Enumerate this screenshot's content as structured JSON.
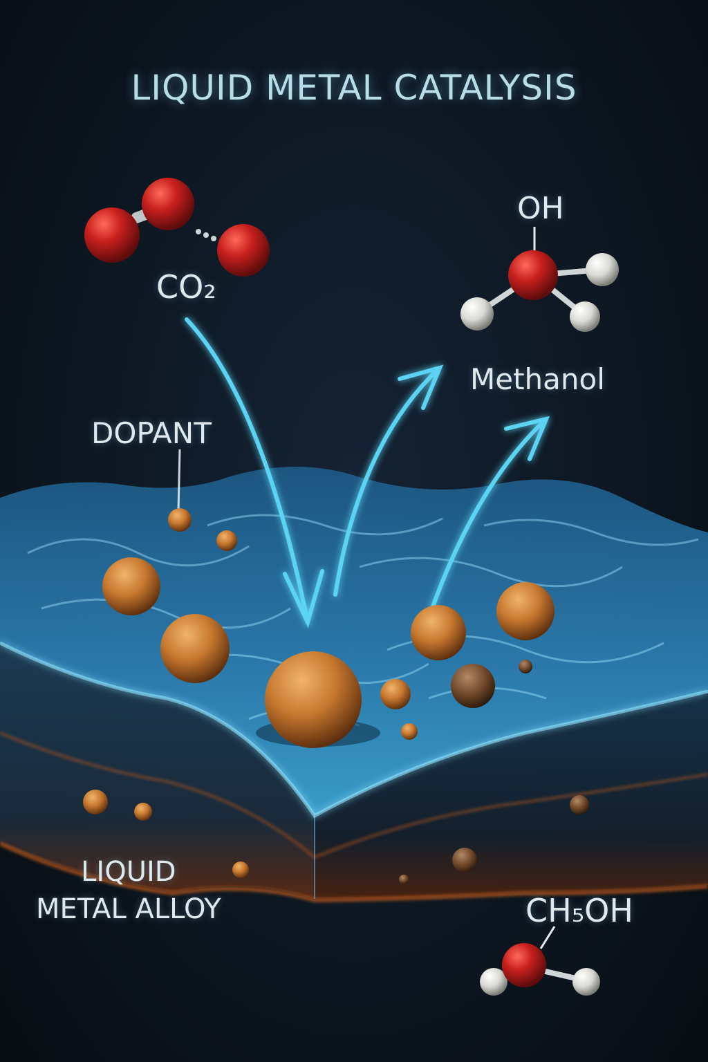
{
  "title": "LIQUID METAL CATALYSIS",
  "labels": {
    "reactant": "CO₂",
    "product_group": "OH",
    "product": "Methanol",
    "dopant": "DOPANT",
    "alloy_line1": "LIQUID",
    "alloy_line2": "METAL ALLOY",
    "formula": "CH₅OH"
  },
  "colors": {
    "background": "#0b121b",
    "liquid_surface": "#2c7fb4",
    "flow_arrows": "#5cd3f2",
    "dopant_droplets": "#c7782f",
    "oxygen_atom": "#c8201e",
    "hydrogen_atom": "#d9d9d4",
    "alloy_edge": "#b3541e"
  },
  "icons": [
    "co2-molecule",
    "methanol-molecule",
    "water-like-molecule",
    "dopant-droplet",
    "flow-arrow"
  ]
}
